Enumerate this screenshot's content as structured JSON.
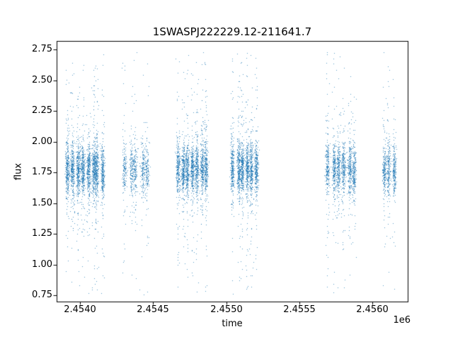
{
  "chart_data": {
    "type": "scatter",
    "title": "1SWASPJ222229.12-211641.7",
    "xlabel": "time",
    "ylabel": "flux",
    "x_offset_label": "1e6",
    "marker_color": "#1f77b4",
    "marker_size": 1,
    "xlim": [
      2453840,
      2456240
    ],
    "ylim": [
      0.7,
      2.82
    ],
    "xticks": [
      2454000,
      2454500,
      2455000,
      2455500,
      2456000
    ],
    "xtick_labels": [
      "2.4540",
      "2.4545",
      "2.4550",
      "2.4555",
      "2.4560"
    ],
    "yticks": [
      0.75,
      1.0,
      1.25,
      1.5,
      1.75,
      2.0,
      2.25,
      2.5,
      2.75
    ],
    "ytick_labels": [
      "0.75",
      "1.00",
      "1.25",
      "1.50",
      "1.75",
      "2.00",
      "2.25",
      "2.50",
      "2.75"
    ],
    "flux_core_center": 1.78,
    "flux_core_sigma": 0.1,
    "flux_core_fraction": 0.78,
    "flux_tail_sigma": 0.3,
    "flux_tail_fraction": 0.17,
    "flux_uniform_fraction": 0.05,
    "flux_min": 0.76,
    "flux_max": 2.74,
    "clusters": [
      {
        "x_start": 2453900,
        "x_end": 2454170,
        "nights": 8,
        "points": 2600
      },
      {
        "x_start": 2454290,
        "x_end": 2454480,
        "nights": 5,
        "points": 800
      },
      {
        "x_start": 2454650,
        "x_end": 2454880,
        "nights": 7,
        "points": 2100
      },
      {
        "x_start": 2455030,
        "x_end": 2455215,
        "nights": 6,
        "points": 1900
      },
      {
        "x_start": 2455680,
        "x_end": 2455890,
        "nights": 6,
        "points": 1500
      },
      {
        "x_start": 2456060,
        "x_end": 2456155,
        "nights": 3,
        "points": 650
      }
    ]
  }
}
